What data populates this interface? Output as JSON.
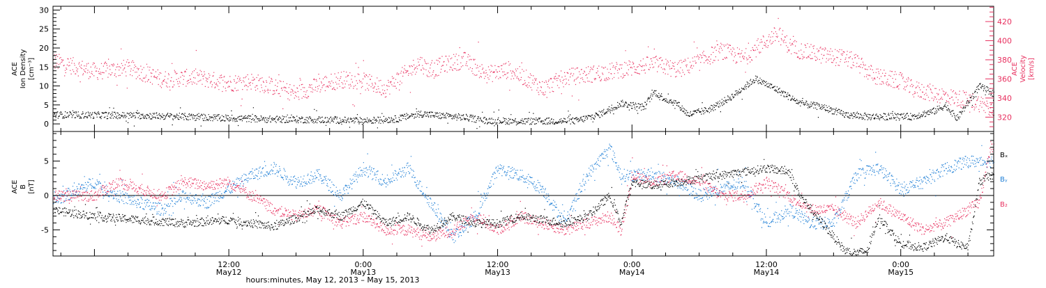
{
  "colors": {
    "density": "#000000",
    "velocity": "#e8305f",
    "bx": "#000000",
    "by": "#1f7fd6",
    "bz": "#e8305f",
    "axis": "#000000"
  },
  "chart_data": [
    {
      "type": "scatter",
      "panel": "top",
      "ylabel_lines": [
        "ACE",
        "Ion Density",
        "[cm⁻³]"
      ],
      "ylabel_right_lines": [
        "ACE",
        "Velocity",
        "[km/s]"
      ],
      "ylim": [
        -2,
        31
      ],
      "ylim_right": [
        305,
        436
      ],
      "yticks": [
        0,
        5,
        10,
        15,
        20,
        25,
        30
      ],
      "yticks_right": [
        320,
        340,
        360,
        380,
        400,
        420
      ],
      "series": [
        {
          "key": "density",
          "axis": "left",
          "color": "#000000",
          "points": [
            [
              -4,
              2.5
            ],
            [
              4,
              2.3
            ],
            [
              8,
              2.0
            ],
            [
              12,
              1.6
            ],
            [
              16,
              1.3
            ],
            [
              20,
              1.2
            ],
            [
              24,
              0.9
            ],
            [
              27,
              1.4
            ],
            [
              29,
              2.8
            ],
            [
              31,
              2.2
            ],
            [
              33,
              1.8
            ],
            [
              35,
              1.0
            ],
            [
              38,
              0.8
            ],
            [
              40,
              0.8
            ],
            [
              43,
              0.9
            ],
            [
              45,
              2.5
            ],
            [
              47,
              5.5
            ],
            [
              49,
              4.5
            ],
            [
              50,
              8.5
            ],
            [
              51,
              6.5
            ],
            [
              52,
              5.5
            ],
            [
              53,
              2.5
            ],
            [
              55,
              4.0
            ],
            [
              57,
              7.5
            ],
            [
              59,
              12.0
            ],
            [
              61,
              9.0
            ],
            [
              63,
              5.5
            ],
            [
              65,
              4.5
            ],
            [
              67,
              2.5
            ],
            [
              69,
              2.0
            ],
            [
              71,
              2.0
            ],
            [
              73,
              2.0
            ],
            [
              75,
              3.5
            ],
            [
              76,
              5.0
            ],
            [
              77,
              1.5
            ],
            [
              79,
              10.0
            ],
            [
              81,
              7.0
            ],
            [
              83,
              9.0
            ],
            [
              84,
              5.0
            ],
            [
              86,
              4.5
            ],
            [
              88,
              7.0
            ],
            [
              90,
              5.0
            ],
            [
              92,
              3.5
            ]
          ]
        },
        {
          "key": "velocity",
          "axis": "right",
          "color": "#e8305f",
          "points": [
            [
              -4,
              380
            ],
            [
              0,
              368
            ],
            [
              3,
              372
            ],
            [
              6,
              360
            ],
            [
              9,
              362
            ],
            [
              12,
              356
            ],
            [
              14,
              358
            ],
            [
              16,
              352
            ],
            [
              18,
              345
            ],
            [
              20,
              354
            ],
            [
              22,
              360
            ],
            [
              24,
              358
            ],
            [
              26,
              350
            ],
            [
              27,
              360
            ],
            [
              28,
              368
            ],
            [
              29,
              378
            ],
            [
              30,
              368
            ],
            [
              31,
              375
            ],
            [
              33,
              380
            ],
            [
              35,
              365
            ],
            [
              37,
              370
            ],
            [
              39,
              358
            ],
            [
              40,
              350
            ],
            [
              42,
              362
            ],
            [
              44,
              365
            ],
            [
              46,
              368
            ],
            [
              48,
              372
            ],
            [
              50,
              376
            ],
            [
              52,
              370
            ],
            [
              54,
              378
            ],
            [
              55,
              385
            ],
            [
              56,
              390
            ],
            [
              58,
              382
            ],
            [
              59,
              392
            ],
            [
              60,
              400
            ],
            [
              61,
              408
            ],
            [
              62,
              395
            ],
            [
              63,
              390
            ],
            [
              65,
              385
            ],
            [
              67,
              382
            ],
            [
              68,
              378
            ],
            [
              69,
              368
            ],
            [
              70,
              362
            ],
            [
              72,
              358
            ],
            [
              73,
              350
            ],
            [
              75,
              345
            ],
            [
              77,
              340
            ],
            [
              79,
              335
            ],
            [
              80,
              330
            ],
            [
              82,
              322
            ],
            [
              83,
              318
            ]
          ]
        }
      ]
    },
    {
      "type": "scatter",
      "panel": "bottom",
      "ylabel_lines": [
        "ACE",
        "B",
        "[nT]"
      ],
      "ylim": [
        -8.8,
        9.3
      ],
      "yticks": [
        -5,
        0,
        5
      ],
      "legend": [
        "Bₓ",
        "Bᵧ",
        "B₂"
      ],
      "series": [
        {
          "key": "bx",
          "color": "#000000",
          "points": [
            [
              -4,
              -2
            ],
            [
              0,
              -3
            ],
            [
              4,
              -3.5
            ],
            [
              8,
              -4
            ],
            [
              12,
              -3.5
            ],
            [
              16,
              -4.5
            ],
            [
              20,
              -2
            ],
            [
              22,
              -3
            ],
            [
              24,
              -1
            ],
            [
              26,
              -4
            ],
            [
              28,
              -3
            ],
            [
              30,
              -5
            ],
            [
              32,
              -3
            ],
            [
              34,
              -4
            ],
            [
              36,
              -4
            ],
            [
              38,
              -3
            ],
            [
              40,
              -3.5
            ],
            [
              42,
              -4
            ],
            [
              44,
              -3
            ],
            [
              46,
              0
            ],
            [
              47,
              -4
            ],
            [
              48,
              2
            ],
            [
              50,
              1.5
            ],
            [
              52,
              2
            ],
            [
              54,
              2.5
            ],
            [
              56,
              3
            ],
            [
              58,
              3.5
            ],
            [
              60,
              4
            ],
            [
              62,
              3.5
            ],
            [
              63,
              0
            ],
            [
              64,
              -2
            ],
            [
              65,
              -4
            ],
            [
              66,
              -6
            ],
            [
              67,
              -8
            ],
            [
              68,
              -8.3
            ],
            [
              69,
              -8
            ],
            [
              70,
              -3
            ],
            [
              71,
              -5
            ],
            [
              72,
              -7
            ],
            [
              74,
              -7.5
            ],
            [
              76,
              -6
            ],
            [
              77,
              -7
            ],
            [
              78,
              -7.5
            ],
            [
              79,
              2
            ],
            [
              80,
              3
            ],
            [
              82,
              0
            ],
            [
              84,
              0
            ],
            [
              85,
              -2
            ],
            [
              86,
              -1
            ],
            [
              88,
              0
            ],
            [
              90,
              0
            ],
            [
              92,
              0.5
            ]
          ]
        },
        {
          "key": "by",
          "color": "#1f7fd6",
          "points": [
            [
              -4,
              -1
            ],
            [
              0,
              2
            ],
            [
              2,
              0
            ],
            [
              4,
              -1
            ],
            [
              6,
              -2
            ],
            [
              8,
              0
            ],
            [
              10,
              -1
            ],
            [
              12,
              1
            ],
            [
              14,
              3
            ],
            [
              16,
              4
            ],
            [
              18,
              2
            ],
            [
              20,
              3
            ],
            [
              22,
              0
            ],
            [
              24,
              4
            ],
            [
              26,
              2
            ],
            [
              28,
              4
            ],
            [
              30,
              -1
            ],
            [
              32,
              -6
            ],
            [
              34,
              -3
            ],
            [
              36,
              4
            ],
            [
              38,
              3
            ],
            [
              40,
              1
            ],
            [
              42,
              -4
            ],
            [
              44,
              3
            ],
            [
              46,
              7
            ],
            [
              47,
              3
            ],
            [
              48,
              3
            ],
            [
              50,
              3
            ],
            [
              52,
              2
            ],
            [
              54,
              0
            ],
            [
              56,
              1
            ],
            [
              58,
              2
            ],
            [
              60,
              -4
            ],
            [
              62,
              -2
            ],
            [
              64,
              -4
            ],
            [
              66,
              -4
            ],
            [
              68,
              3
            ],
            [
              70,
              4
            ],
            [
              72,
              1
            ],
            [
              74,
              2
            ],
            [
              76,
              4
            ],
            [
              78,
              5
            ],
            [
              80,
              5
            ],
            [
              82,
              7
            ],
            [
              83,
              4
            ],
            [
              84,
              3
            ],
            [
              85,
              -1
            ],
            [
              86,
              1
            ],
            [
              88,
              1
            ],
            [
              90,
              0
            ],
            [
              92,
              4.5
            ]
          ]
        },
        {
          "key": "bz",
          "color": "#e8305f",
          "points": [
            [
              -4,
              0
            ],
            [
              0,
              0
            ],
            [
              2,
              2
            ],
            [
              4,
              1
            ],
            [
              6,
              0
            ],
            [
              8,
              2
            ],
            [
              10,
              1.5
            ],
            [
              12,
              2
            ],
            [
              14,
              0
            ],
            [
              16,
              -2
            ],
            [
              18,
              -3
            ],
            [
              20,
              -2
            ],
            [
              22,
              -4
            ],
            [
              24,
              -3
            ],
            [
              26,
              -5
            ],
            [
              28,
              -5
            ],
            [
              30,
              -6
            ],
            [
              32,
              -5
            ],
            [
              34,
              -3
            ],
            [
              36,
              -5
            ],
            [
              38,
              -3
            ],
            [
              40,
              -4
            ],
            [
              42,
              -5
            ],
            [
              44,
              -4
            ],
            [
              46,
              -3
            ],
            [
              47,
              -5
            ],
            [
              48,
              3
            ],
            [
              50,
              2
            ],
            [
              52,
              3
            ],
            [
              54,
              2
            ],
            [
              56,
              0
            ],
            [
              58,
              0
            ],
            [
              60,
              2
            ],
            [
              62,
              0
            ],
            [
              64,
              -2
            ],
            [
              66,
              -2
            ],
            [
              68,
              -4
            ],
            [
              70,
              -1
            ],
            [
              72,
              -3
            ],
            [
              74,
              -5
            ],
            [
              76,
              -4
            ],
            [
              78,
              -2
            ],
            [
              79,
              -1
            ],
            [
              80,
              7
            ],
            [
              82,
              7.5
            ],
            [
              84,
              6
            ],
            [
              86,
              5.5
            ],
            [
              88,
              5
            ],
            [
              90,
              4
            ],
            [
              92,
              4
            ]
          ]
        }
      ]
    }
  ],
  "xaxis": {
    "ticks": [
      {
        "h": 12,
        "line1": "12:00",
        "line2": "May12"
      },
      {
        "h": 24,
        "line1": "0:00",
        "line2": "May13"
      },
      {
        "h": 36,
        "line1": "12:00",
        "line2": "May13"
      },
      {
        "h": 48,
        "line1": "0:00",
        "line2": "May14"
      },
      {
        "h": 60,
        "line1": "12:00",
        "line2": "May14"
      },
      {
        "h": 72,
        "line1": "0:00",
        "line2": "May15"
      }
    ],
    "range_hours": [
      -3.7,
      80.3
    ],
    "xlabel": "hours:minutes, May 12, 2013 – May 15, 2013"
  }
}
